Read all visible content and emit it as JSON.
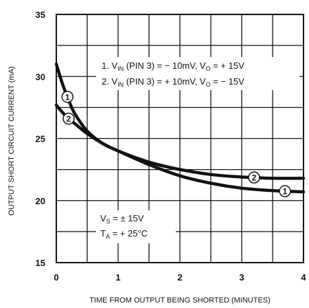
{
  "chart_data": {
    "type": "line",
    "xlabel": "TIME FROM OUTPUT BEING SHORTED (MINUTES)",
    "ylabel": "OUTPUT SHORT CIRCUIT CURRENT (mA)",
    "xlim": [
      0,
      4
    ],
    "ylim": [
      15,
      35
    ],
    "x_ticks": [
      "0",
      "1",
      "2",
      "3",
      "4"
    ],
    "y_ticks": [
      "15",
      "20",
      "25",
      "30",
      "35"
    ],
    "grid": true,
    "series": [
      {
        "name": "1",
        "x": [
          0,
          0.1,
          0.2,
          0.3,
          0.5,
          0.75,
          1.0,
          1.5,
          2.0,
          2.5,
          3.0,
          3.5,
          4.0
        ],
        "y": [
          31.0,
          29.4,
          28.1,
          27.0,
          25.6,
          24.6,
          24.0,
          22.9,
          22.0,
          21.4,
          21.0,
          20.8,
          20.7
        ],
        "marker_x": 3.7
      },
      {
        "name": "2",
        "x": [
          0,
          0.1,
          0.2,
          0.3,
          0.5,
          0.75,
          1.0,
          1.5,
          2.0,
          2.5,
          3.0,
          3.5,
          4.0
        ],
        "y": [
          27.7,
          27.1,
          26.6,
          26.2,
          25.4,
          24.6,
          24.0,
          23.1,
          22.5,
          22.1,
          21.9,
          21.8,
          21.8
        ],
        "marker_x": 3.2
      }
    ],
    "legend_lines": [
      [
        "1. V",
        "IN",
        " (PIN 3) = − 10mV, V",
        "O",
        " = + 15V"
      ],
      [
        "2. V",
        "IN",
        " (PIN 3) = + 10mV, V",
        "O",
        " = − 15V"
      ]
    ],
    "conditions": [
      [
        "V",
        "S",
        " = ± 15V"
      ],
      [
        "T",
        "A",
        " = + 25°C"
      ]
    ]
  }
}
